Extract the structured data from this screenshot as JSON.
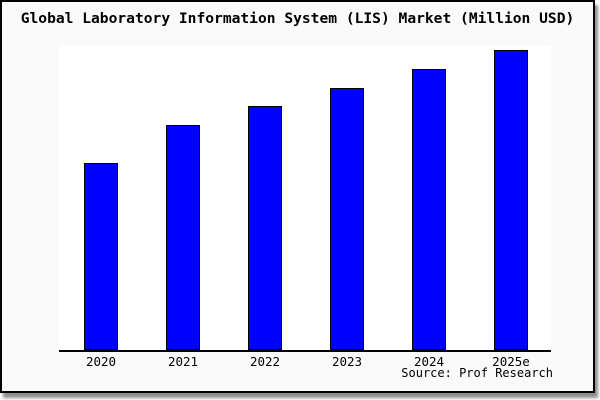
{
  "frame": {
    "background": "#fafafa",
    "border_color": "#000000"
  },
  "chart_data": {
    "type": "bar",
    "title": "Global Laboratory Information System (LIS) Market (Million USD)",
    "categories": [
      "2020",
      "2021",
      "2022",
      "2023",
      "2024",
      "2025e"
    ],
    "values": [
      62.3,
      75.0,
      81.3,
      87.3,
      93.7,
      100.0
    ],
    "values_basis": "relative bar height as % of tallest bar (no y-axis tick labels are shown in the chart)",
    "xlabel": "",
    "ylabel": "",
    "grid": false,
    "legend": false,
    "axes": "bottom spine only, x tick labels only",
    "bar_color": "#0000ff",
    "bar_outline_color": "#000000",
    "plot_background": "#ffffff",
    "source_note": "Source: Prof Research"
  }
}
